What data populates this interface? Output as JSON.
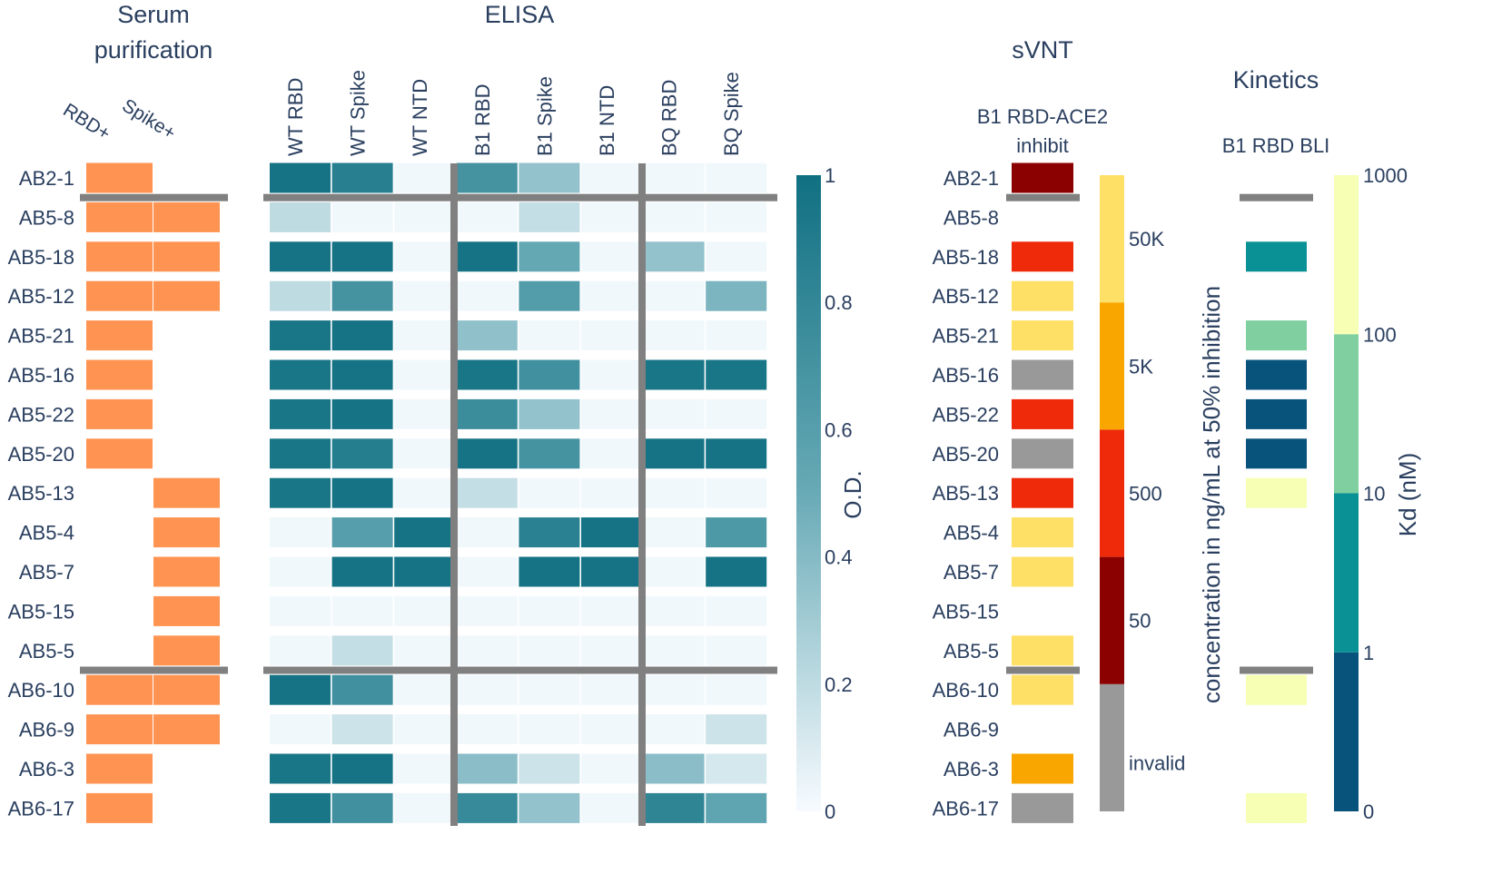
{
  "antibodies": [
    "AB2-1",
    "AB5-8",
    "AB5-18",
    "AB5-12",
    "AB5-21",
    "AB5-16",
    "AB5-22",
    "AB5-20",
    "AB5-13",
    "AB5-4",
    "AB5-7",
    "AB5-15",
    "AB5-5",
    "AB6-10",
    "AB6-9",
    "AB6-3",
    "AB6-17"
  ],
  "chart_data": [
    {
      "type": "heatmap",
      "title_lines": [
        "Serum",
        "purification"
      ],
      "columns": [
        "RBD+",
        "Spike+"
      ],
      "color": "#ff9452",
      "values": [
        [
          1,
          0
        ],
        [
          1,
          1
        ],
        [
          1,
          1
        ],
        [
          1,
          1
        ],
        [
          1,
          0
        ],
        [
          1,
          0
        ],
        [
          1,
          0
        ],
        [
          1,
          0
        ],
        [
          0,
          1
        ],
        [
          0,
          1
        ],
        [
          0,
          1
        ],
        [
          0,
          1
        ],
        [
          0,
          1
        ],
        [
          1,
          1
        ],
        [
          1,
          1
        ],
        [
          1,
          0
        ],
        [
          1,
          0
        ]
      ]
    },
    {
      "type": "heatmap",
      "title": "ELISA",
      "columns": [
        "WT RBD",
        "WT Spike",
        "WT NTD",
        "B1 RBD",
        "B1 Spike",
        "B1 NTD",
        "BQ RBD",
        "BQ Spike"
      ],
      "zlim": [
        0,
        1
      ],
      "colorbar": {
        "title": "O.D.",
        "ticks": [
          0,
          0.2,
          0.4,
          0.6,
          0.8,
          1
        ]
      },
      "values": [
        [
          0.97,
          0.87,
          0.02,
          0.7,
          0.35,
          0.02,
          0.02,
          0.02
        ],
        [
          0.2,
          0.02,
          0.02,
          0.02,
          0.18,
          0.02,
          0.02,
          0.02
        ],
        [
          0.97,
          0.97,
          0.02,
          0.97,
          0.52,
          0.02,
          0.35,
          0.02
        ],
        [
          0.2,
          0.7,
          0.02,
          0.02,
          0.62,
          0.02,
          0.02,
          0.43
        ],
        [
          0.95,
          0.97,
          0.02,
          0.36,
          0.02,
          0.02,
          0.02,
          0.02
        ],
        [
          0.95,
          0.97,
          0.02,
          0.95,
          0.72,
          0.02,
          0.95,
          0.95
        ],
        [
          0.95,
          0.97,
          0.02,
          0.75,
          0.35,
          0.02,
          0.02,
          0.02
        ],
        [
          0.95,
          0.88,
          0.02,
          0.97,
          0.7,
          0.02,
          0.97,
          0.97
        ],
        [
          0.95,
          0.97,
          0.02,
          0.18,
          0.02,
          0.02,
          0.02,
          0.02
        ],
        [
          0.02,
          0.6,
          0.97,
          0.02,
          0.85,
          0.97,
          0.02,
          0.65
        ],
        [
          0.02,
          0.97,
          0.97,
          0.02,
          0.97,
          0.97,
          0.02,
          0.97
        ],
        [
          0.02,
          0.02,
          0.02,
          0.02,
          0.02,
          0.02,
          0.02,
          0.02
        ],
        [
          0.02,
          0.18,
          0.02,
          0.02,
          0.02,
          0.02,
          0.02,
          0.02
        ],
        [
          0.97,
          0.72,
          0.02,
          0.02,
          0.02,
          0.02,
          0.02,
          0.02
        ],
        [
          0.02,
          0.15,
          0.02,
          0.02,
          0.02,
          0.02,
          0.02,
          0.15
        ],
        [
          0.95,
          0.97,
          0.02,
          0.38,
          0.15,
          0.02,
          0.38,
          0.12
        ],
        [
          0.95,
          0.72,
          0.02,
          0.78,
          0.35,
          0.02,
          0.82,
          0.55
        ]
      ]
    },
    {
      "type": "heatmap",
      "title": "sVNT",
      "subtitle_lines": [
        "B1 RBD-ACE2",
        "inhibit"
      ],
      "colorbar": {
        "title": "concentration in ng/mL at 50% inhibition",
        "bins": [
          {
            "label": "invalid",
            "color": "#999999"
          },
          {
            "label": "50",
            "color": "#8b0000"
          },
          {
            "label": "500",
            "color": "#ee2a0b"
          },
          {
            "label": "5K",
            "color": "#f9a600"
          },
          {
            "label": "50K",
            "color": "#ffe066"
          }
        ]
      },
      "values": [
        "50",
        null,
        "500",
        "50K",
        "50K",
        "invalid",
        "500",
        "invalid",
        "500",
        "50K",
        "50K",
        null,
        "50K",
        "50K",
        null,
        "5K",
        "invalid"
      ]
    },
    {
      "type": "heatmap",
      "title": "Kinetics",
      "subtitle": "B1 RBD BLI",
      "colorbar": {
        "title": "Kd (nM)",
        "tick_labels": [
          "0",
          "1",
          "10",
          "100",
          "1000"
        ],
        "bins": [
          "#08537b",
          "#0a9196",
          "#80cfa1",
          "#f6ffb3"
        ]
      },
      "values": [
        null,
        null,
        "#0a9196",
        null,
        "#80cfa1",
        "#08537b",
        "#08537b",
        "#08537b",
        "#f6ffb3",
        null,
        null,
        null,
        null,
        "#f6ffb3",
        null,
        null,
        "#f6ffb3"
      ]
    }
  ]
}
